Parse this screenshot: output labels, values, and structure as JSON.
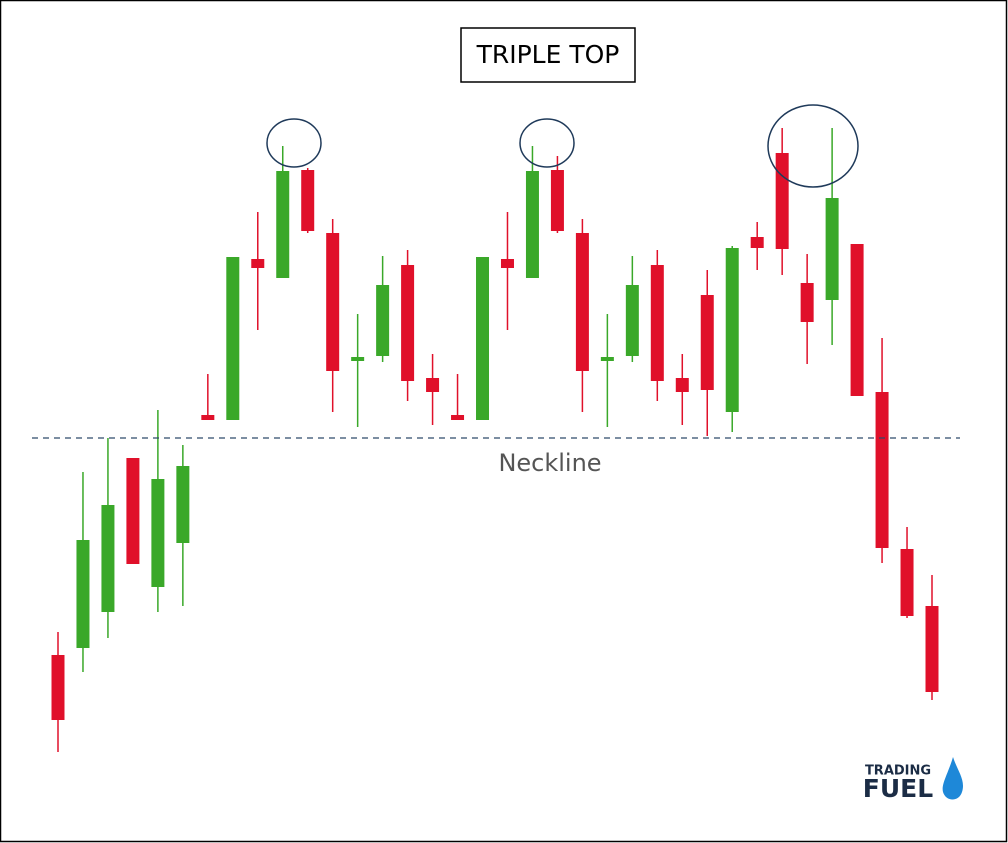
{
  "chart_data": {
    "type": "candlestick",
    "title": "TRIPLE TOP",
    "up_color": "#3aa829",
    "down_color": "#e0102a",
    "ylim": [
      0,
      843
    ],
    "open": [
      188,
      195,
      231,
      385,
      256,
      300,
      428,
      423,
      584,
      565,
      673,
      610,
      482,
      487,
      578,
      465,
      428,
      423,
      584,
      565,
      673,
      610,
      482,
      487,
      578,
      465,
      548,
      431,
      606,
      690,
      560,
      543,
      599,
      451,
      294,
      237
    ],
    "close": [
      123,
      303,
      338,
      279,
      364,
      377,
      423,
      586,
      575,
      672,
      612,
      472,
      486,
      558,
      462,
      451,
      423,
      586,
      575,
      672,
      612,
      472,
      486,
      558,
      462,
      451,
      453,
      595,
      595,
      594,
      521,
      645,
      447,
      295,
      227,
      151
    ],
    "high": [
      211,
      371,
      405,
      385,
      433,
      398,
      469,
      586,
      631,
      697,
      675,
      624,
      529,
      587,
      593,
      489,
      469,
      586,
      631,
      697,
      687,
      624,
      529,
      587,
      593,
      489,
      573,
      597,
      621,
      715,
      589,
      715,
      599,
      505,
      316,
      268
    ],
    "low": [
      91,
      171,
      205,
      279,
      231,
      237,
      423,
      423,
      513,
      565,
      610,
      431,
      416,
      481,
      442,
      418,
      423,
      423,
      513,
      565,
      610,
      431,
      416,
      481,
      442,
      418,
      407,
      411,
      573,
      568,
      479,
      498,
      447,
      280,
      225,
      143
    ],
    "neckline": {
      "label": "Neckline",
      "value": 405
    },
    "logo": [
      "TRADING",
      "FUEL"
    ]
  }
}
